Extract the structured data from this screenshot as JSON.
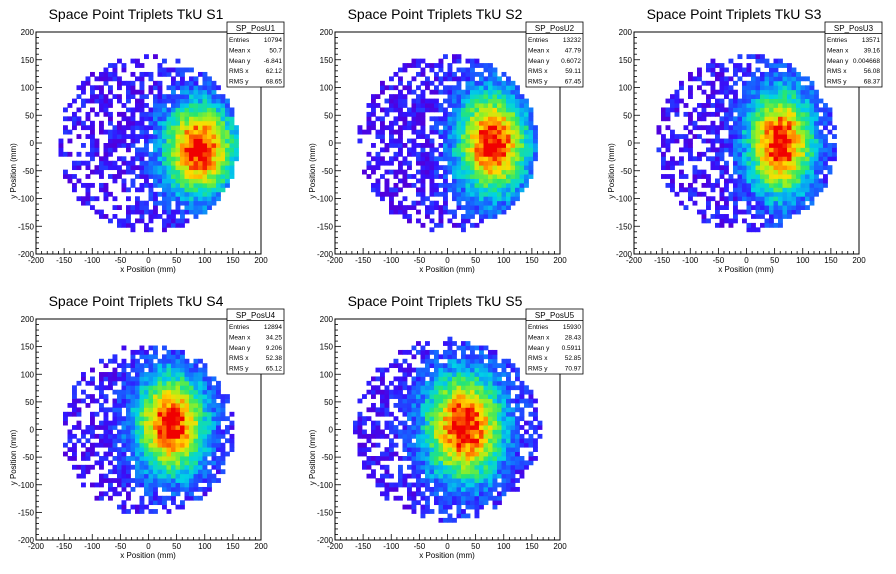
{
  "chart_data": [
    {
      "type": "heatmap",
      "title": "Space Point Triplets TkU S1",
      "xlabel": "x Position (mm)",
      "ylabel": "y Position (mm)",
      "xlim": [
        -200,
        200
      ],
      "ylim": [
        -200,
        200
      ],
      "xticks": [
        "-200",
        "-150",
        "-100",
        "-50",
        "0",
        "50",
        "100",
        "150",
        "200"
      ],
      "yticks": [
        "-200",
        "-150",
        "-100",
        "-50",
        "0",
        "50",
        "100",
        "150",
        "200"
      ],
      "stats": {
        "name": "SP_PosU1",
        "rows": [
          {
            "label": "Entries",
            "value": "10794"
          },
          {
            "label": "Mean x",
            "value": "50.7"
          },
          {
            "label": "Mean y",
            "value": "-6.841"
          },
          {
            "label": "RMS x",
            "value": "62.12"
          },
          {
            "label": "RMS y",
            "value": "68.65"
          }
        ]
      },
      "hotspot": {
        "x": 90,
        "y": -10,
        "sx": 45,
        "sy": 60
      },
      "radius": 160
    },
    {
      "type": "heatmap",
      "title": "Space Point Triplets TkU S2",
      "xlabel": "x Position (mm)",
      "ylabel": "y Position (mm)",
      "xlim": [
        -200,
        200
      ],
      "ylim": [
        -200,
        200
      ],
      "xticks": [
        "-200",
        "-150",
        "-100",
        "-50",
        "0",
        "50",
        "100",
        "150",
        "200"
      ],
      "yticks": [
        "-200",
        "-150",
        "-100",
        "-50",
        "0",
        "50",
        "100",
        "150",
        "200"
      ],
      "stats": {
        "name": "SP_PosU2",
        "rows": [
          {
            "label": "Entries",
            "value": "13232"
          },
          {
            "label": "Mean x",
            "value": "47.79"
          },
          {
            "label": "Mean y",
            "value": "0.6072"
          },
          {
            "label": "RMS x",
            "value": "59.11"
          },
          {
            "label": "RMS y",
            "value": "67.45"
          }
        ]
      },
      "hotspot": {
        "x": 80,
        "y": 0,
        "sx": 45,
        "sy": 65
      },
      "radius": 160
    },
    {
      "type": "heatmap",
      "title": "Space Point Triplets TkU S3",
      "xlabel": "x Position (mm)",
      "ylabel": "y Position (mm)",
      "xlim": [
        -200,
        200
      ],
      "ylim": [
        -200,
        200
      ],
      "xticks": [
        "-200",
        "-150",
        "-100",
        "-50",
        "0",
        "50",
        "100",
        "150",
        "200"
      ],
      "yticks": [
        "-200",
        "-150",
        "-100",
        "-50",
        "0",
        "50",
        "100",
        "150",
        "200"
      ],
      "stats": {
        "name": "SP_PosU3",
        "rows": [
          {
            "label": "Entries",
            "value": "13571"
          },
          {
            "label": "Mean x",
            "value": "39.16"
          },
          {
            "label": "Mean y",
            "value": "0.004668"
          },
          {
            "label": "RMS x",
            "value": "56.08"
          },
          {
            "label": "RMS y",
            "value": "68.37"
          }
        ]
      },
      "hotspot": {
        "x": 60,
        "y": 0,
        "sx": 42,
        "sy": 68
      },
      "radius": 160
    },
    {
      "type": "heatmap",
      "title": "Space Point Triplets TkU S4",
      "xlabel": "x Position (mm)",
      "ylabel": "y Position (mm)",
      "xlim": [
        -200,
        200
      ],
      "ylim": [
        -200,
        200
      ],
      "xticks": [
        "-200",
        "-150",
        "-100",
        "-50",
        "0",
        "50",
        "100",
        "150",
        "200"
      ],
      "yticks": [
        "-200",
        "-150",
        "-100",
        "-50",
        "0",
        "50",
        "100",
        "150",
        "200"
      ],
      "stats": {
        "name": "SP_PosU4",
        "rows": [
          {
            "label": "Entries",
            "value": "12894"
          },
          {
            "label": "Mean x",
            "value": "34.25"
          },
          {
            "label": "Mean y",
            "value": "9.206"
          },
          {
            "label": "RMS x",
            "value": "52.38"
          },
          {
            "label": "RMS y",
            "value": "65.12"
          }
        ]
      },
      "hotspot": {
        "x": 40,
        "y": 10,
        "sx": 45,
        "sy": 65
      },
      "radius": 155
    },
    {
      "type": "heatmap",
      "title": "Space Point Triplets TkU S5",
      "xlabel": "x Position (mm)",
      "ylabel": "y Position (mm)",
      "xlim": [
        -200,
        200
      ],
      "ylim": [
        -200,
        200
      ],
      "xticks": [
        "-200",
        "-150",
        "-100",
        "-50",
        "0",
        "50",
        "100",
        "150",
        "200"
      ],
      "yticks": [
        "-200",
        "-150",
        "-100",
        "-50",
        "0",
        "50",
        "100",
        "150",
        "200"
      ],
      "stats": {
        "name": "SP_PosU5",
        "rows": [
          {
            "label": "Entries",
            "value": "15930"
          },
          {
            "label": "Mean x",
            "value": "28.43"
          },
          {
            "label": "Mean y",
            "value": "0.5911"
          },
          {
            "label": "RMS x",
            "value": "52.85"
          },
          {
            "label": "RMS y",
            "value": "70.97"
          }
        ]
      },
      "hotspot": {
        "x": 30,
        "y": 5,
        "sx": 50,
        "sy": 70
      },
      "radius": 165
    }
  ]
}
